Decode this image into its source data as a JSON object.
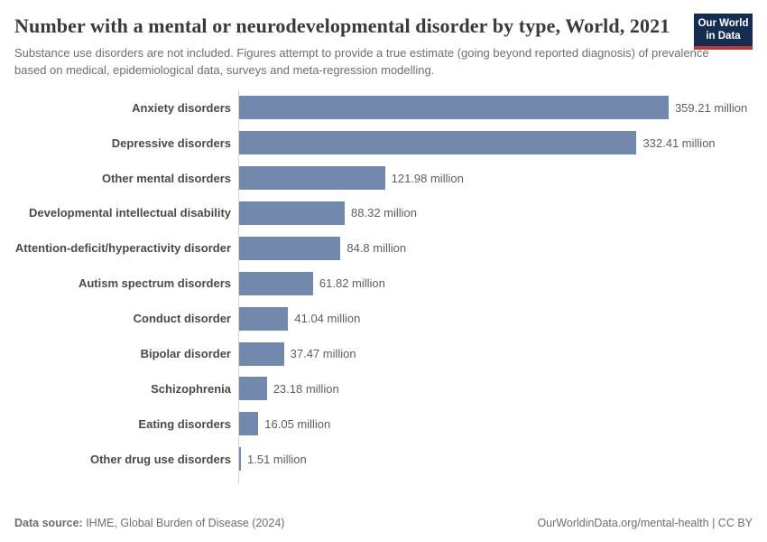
{
  "header": {
    "title": "Number with a mental or neurodevelopmental disorder by type, World, 2021",
    "subtitle": "Substance use disorders are not included. Figures attempt to provide a true estimate (going beyond reported diagnosis) of prevalence based on medical, epidemiological data, surveys and meta-regression modelling.",
    "logo": {
      "line1": "Our World",
      "line2": "in Data"
    },
    "logo_colors": {
      "background": "#142d50",
      "underline": "#bf3636"
    }
  },
  "chart_data": {
    "type": "bar",
    "orientation": "horizontal",
    "title": "Number with a mental or neurodevelopmental disorder by type, World, 2021",
    "categories": [
      "Anxiety disorders",
      "Depressive disorders",
      "Other mental disorders",
      "Developmental intellectual disability",
      "Attention-deficit/hyperactivity disorder",
      "Autism spectrum disorders",
      "Conduct disorder",
      "Bipolar disorder",
      "Schizophrenia",
      "Eating disorders",
      "Other drug use disorders"
    ],
    "values": [
      359.21,
      332.41,
      121.98,
      88.32,
      84.8,
      61.82,
      41.04,
      37.47,
      23.18,
      16.05,
      1.51
    ],
    "value_labels": [
      "359.21 million",
      "332.41 million",
      "121.98 million",
      "88.32 million",
      "84.8 million",
      "61.82 million",
      "41.04 million",
      "37.47 million",
      "23.18 million",
      "16.05 million",
      "1.51 million"
    ],
    "unit": "million",
    "xlim": [
      0,
      360
    ],
    "bar_color": "#7288ad",
    "axis_color": "#d4d4d4",
    "grid": false,
    "legend": false
  },
  "footer": {
    "source_label": "Data source:",
    "source_value": " IHME, Global Burden of Disease (2024)",
    "url": "OurWorldinData.org/mental-health",
    "separator": " | ",
    "license": "CC BY"
  }
}
